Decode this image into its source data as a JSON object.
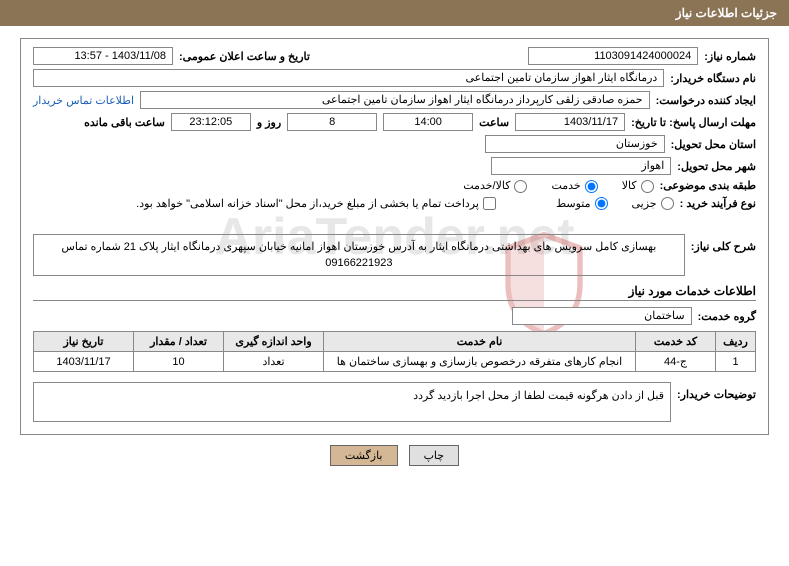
{
  "header": {
    "title": "جزئیات اطلاعات نیاز"
  },
  "watermark": "AriaTender.net",
  "labels": {
    "need_number": "شماره نیاز:",
    "announce_datetime": "تاریخ و ساعت اعلان عمومی:",
    "buyer_device": "نام دستگاه خریدار:",
    "request_creator": "ایجاد کننده درخواست:",
    "contact_link": "اطلاعات تماس خریدار",
    "deadline": "مهلت ارسال پاسخ: تا تاریخ:",
    "saat": "ساعت",
    "rooz_va": "روز و",
    "remaining": "ساعت باقی مانده",
    "delivery_province": "استان محل تحویل:",
    "delivery_city": "شهر محل تحویل:",
    "subject_category": "طبقه بندی موضوعی:",
    "purchase_type": "نوع فرآیند خرید :",
    "treasury_note": "پرداخت تمام یا بخشی از مبلغ خرید،از محل \"اسناد خزانه اسلامی\" خواهد بود.",
    "need_desc": "شرح کلی نیاز:",
    "services_info": "اطلاعات خدمات مورد نیاز",
    "service_group": "گروه خدمت:",
    "buyer_notes": "توضیحات خریدار:"
  },
  "values": {
    "need_number": "1103091424000024",
    "announce_datetime": "1403/11/08 - 13:57",
    "buyer_device": "درمانگاه ایثار اهواز سازمان تامین اجتماعی",
    "request_creator": "حمزه صادقی زلقی کارپرداز درمانگاه ایثار اهواز سازمان تامین اجتماعی",
    "deadline_date": "1403/11/17",
    "deadline_time": "14:00",
    "remaining_days": "8",
    "remaining_time": "23:12:05",
    "delivery_province": "خوزستان",
    "delivery_city": "اهواز",
    "need_desc": "بهسازی کامل سرویس های بهداشتی درمانگاه ایثار به آدرس خوزستان اهواز امانیه خیابان سپهری درمانگاه ایثار پلاک 21  شماره تماس 09166221923",
    "service_group": "ساختمان",
    "buyer_notes": "قبل از دادن هرگونه قیمت لطفا از محل اجرا بازدید گردد"
  },
  "radios": {
    "category": {
      "kala": "کالا",
      "khedmat": "خدمت",
      "kala_khedmat": "کالا/خدمت",
      "selected": "khedmat"
    },
    "purchase": {
      "partial": "جزیی",
      "medium": "متوسط",
      "selected": "medium"
    }
  },
  "table": {
    "headers": {
      "row": "ردیف",
      "code": "کد خدمت",
      "name": "نام خدمت",
      "unit": "واحد اندازه گیری",
      "count": "تعداد / مقدار",
      "date": "تاریخ نیاز"
    },
    "rows": [
      {
        "row": "1",
        "code": "ج-44",
        "name": "انجام کارهای متفرقه درخصوص بازسازی و بهسازی ساختمان ها",
        "unit": "تعداد",
        "count": "10",
        "date": "1403/11/17"
      }
    ]
  },
  "buttons": {
    "print": "چاپ",
    "back": "بازگشت"
  }
}
